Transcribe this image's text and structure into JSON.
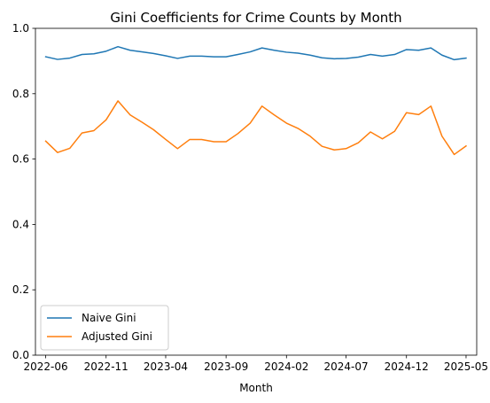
{
  "chart_data": {
    "type": "line",
    "title": "Gini Coefficients for Crime Counts by Month",
    "xlabel": "Month",
    "ylabel": "",
    "ylim": [
      0.0,
      1.0
    ],
    "xlim": [
      "2022-05-06",
      "2025-05-28"
    ],
    "grid": false,
    "legend_position": "lower-left",
    "x_ticks": [
      "2022-06",
      "2022-11",
      "2023-04",
      "2023-09",
      "2024-02",
      "2024-07",
      "2024-12",
      "2025-05"
    ],
    "y_ticks": [
      "0.0",
      "0.2",
      "0.4",
      "0.6",
      "0.8",
      "1.0"
    ],
    "x": [
      "2022-06",
      "2022-07",
      "2022-08",
      "2022-09",
      "2022-10",
      "2022-11",
      "2022-12",
      "2023-01",
      "2023-02",
      "2023-03",
      "2023-04",
      "2023-05",
      "2023-06",
      "2023-07",
      "2023-08",
      "2023-09",
      "2023-10",
      "2023-11",
      "2023-12",
      "2024-01",
      "2024-02",
      "2024-03",
      "2024-04",
      "2024-05",
      "2024-06",
      "2024-07",
      "2024-08",
      "2024-09",
      "2024-10",
      "2024-11",
      "2024-12",
      "2025-01",
      "2025-02",
      "2025-03",
      "2025-04",
      "2025-05"
    ],
    "series": [
      {
        "name": "Naive Gini",
        "color": "#1f77b4",
        "values": [
          0.913,
          0.905,
          0.909,
          0.92,
          0.922,
          0.93,
          0.944,
          0.933,
          0.928,
          0.923,
          0.916,
          0.908,
          0.915,
          0.915,
          0.913,
          0.913,
          0.92,
          0.928,
          0.94,
          0.933,
          0.927,
          0.924,
          0.918,
          0.91,
          0.907,
          0.908,
          0.912,
          0.92,
          0.915,
          0.92,
          0.935,
          0.933,
          0.94,
          0.918,
          0.904,
          0.909
        ]
      },
      {
        "name": "Adjusted Gini",
        "color": "#ff7f0e",
        "values": [
          0.655,
          0.62,
          0.633,
          0.68,
          0.687,
          0.72,
          0.778,
          0.735,
          0.712,
          0.69,
          0.66,
          0.632,
          0.66,
          0.66,
          0.653,
          0.653,
          0.678,
          0.71,
          0.762,
          0.735,
          0.71,
          0.694,
          0.67,
          0.639,
          0.628,
          0.632,
          0.65,
          0.683,
          0.662,
          0.685,
          0.742,
          0.736,
          0.762,
          0.67,
          0.614,
          0.64
        ]
      }
    ]
  }
}
